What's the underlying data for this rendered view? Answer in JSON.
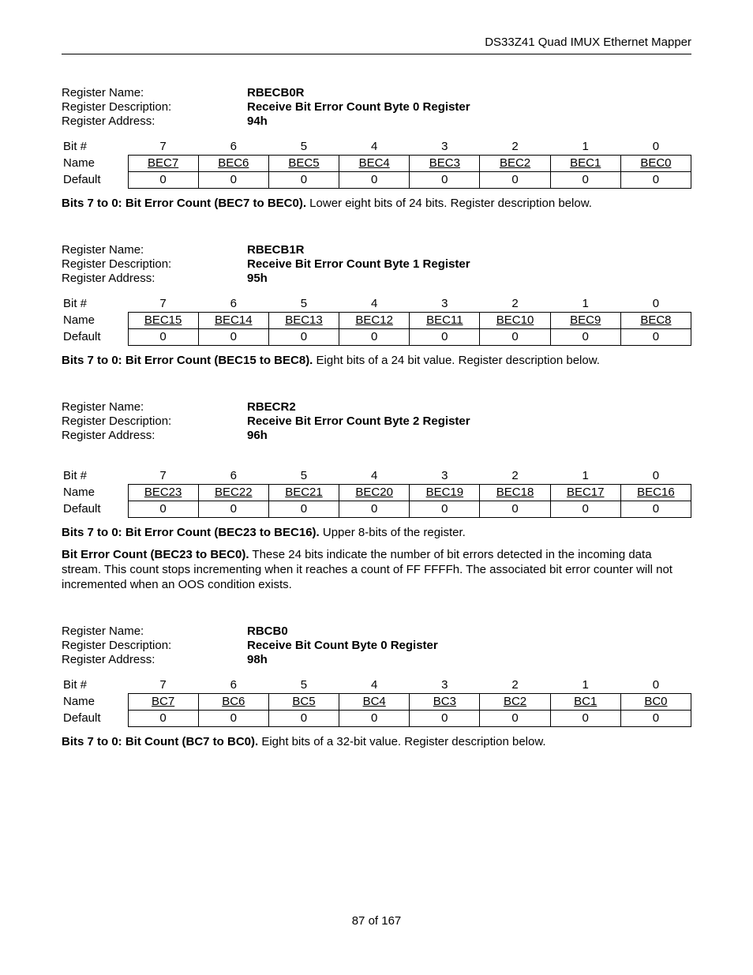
{
  "doc_header": "DS33Z41 Quad IMUX Ethernet Mapper",
  "page_footer": "87 of 167",
  "labels": {
    "reg_name": "Register Name:",
    "reg_desc": "Register Description:",
    "reg_addr": "Register Address:",
    "bit_num": "Bit #",
    "name": "Name",
    "default": "Default"
  },
  "bit_numbers": [
    "7",
    "6",
    "5",
    "4",
    "3",
    "2",
    "1",
    "0"
  ],
  "defaults": [
    "0",
    "0",
    "0",
    "0",
    "0",
    "0",
    "0",
    "0"
  ],
  "registers": [
    {
      "name": "RBECB0R",
      "desc": "Receive Bit Error Count Byte 0 Register",
      "addr": "94h",
      "names": [
        "BEC7",
        "BEC6",
        "BEC5",
        "BEC4",
        "BEC3",
        "BEC2",
        "BEC1",
        "BEC0"
      ],
      "notes_bold": "Bits 7 to 0: Bit Error Count (BEC7 to BEC0).",
      "notes_rest": " Lower eight bits of 24 bits. Register description below.",
      "extra_spacer": false
    },
    {
      "name": "RBECB1R",
      "desc": "Receive Bit Error Count Byte 1 Register",
      "addr": "95h",
      "names": [
        "BEC15",
        "BEC14",
        "BEC13",
        "BEC12",
        "BEC11",
        "BEC10",
        "BEC9",
        "BEC8"
      ],
      "notes_bold": "Bits 7 to 0: Bit Error Count (BEC15 to BEC8).",
      "notes_rest": " Eight bits of a 24 bit value. Register description below.",
      "extra_spacer": false
    },
    {
      "name": "RBECR2",
      "desc": "Receive Bit Error Count Byte 2 Register",
      "addr": "96h",
      "names": [
        "BEC23",
        "BEC22",
        "BEC21",
        "BEC20",
        "BEC19",
        "BEC18",
        "BEC17",
        "BEC16"
      ],
      "notes_bold": "Bits 7 to 0: Bit Error Count (BEC23 to BEC16).",
      "notes_rest": " Upper 8-bits of the register.",
      "extra_spacer": true,
      "extra_para_bold": "Bit Error Count (BEC23 to BEC0).",
      "extra_para_rest": " These 24 bits indicate the number of bit errors detected in the incoming data stream. This count stops incrementing when it reaches a count of FF FFFFh. The associated bit error counter will not incremented when an OOS condition exists."
    },
    {
      "name": "RBCB0",
      "desc": "Receive Bit Count Byte 0 Register",
      "addr": "98h",
      "names": [
        "BC7",
        "BC6",
        "BC5",
        "BC4",
        "BC3",
        "BC2",
        "BC1",
        "BC0"
      ],
      "notes_bold": "Bits 7 to 0: Bit Count (BC7 to BC0).",
      "notes_rest": " Eight bits of a 32-bit value. Register description below.",
      "extra_spacer": false
    }
  ]
}
